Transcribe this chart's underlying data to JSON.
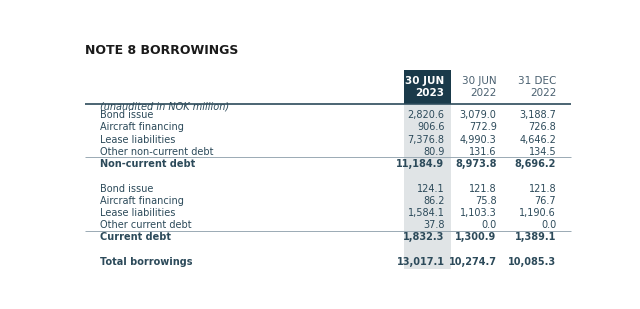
{
  "title": "NOTE 8 BORROWINGS",
  "subtitle": "(unaudited in NOK million)",
  "col_headers": [
    "30 JUN\n2023",
    "30 JUN\n2022",
    "31 DEC\n2022"
  ],
  "col_header_color": [
    "#ffffff",
    "#4a6070",
    "#4a6070"
  ],
  "rows": [
    {
      "label": "Bond issue",
      "vals": [
        "2,820.6",
        "3,079.0",
        "3,188.7"
      ],
      "bold": false,
      "separator_above": false
    },
    {
      "label": "Aircraft financing",
      "vals": [
        "906.6",
        "772.9",
        "726.8"
      ],
      "bold": false,
      "separator_above": false
    },
    {
      "label": "Lease liabilities",
      "vals": [
        "7,376.8",
        "4,990.3",
        "4,646.2"
      ],
      "bold": false,
      "separator_above": false
    },
    {
      "label": "Other non-current debt",
      "vals": [
        "80.9",
        "131.6",
        "134.5"
      ],
      "bold": false,
      "separator_above": false
    },
    {
      "label": "Non-current debt",
      "vals": [
        "11,184.9",
        "8,973.8",
        "8,696.2"
      ],
      "bold": true,
      "separator_above": true
    },
    {
      "label": "",
      "vals": [
        "",
        "",
        ""
      ],
      "bold": false,
      "separator_above": false
    },
    {
      "label": "Bond issue",
      "vals": [
        "124.1",
        "121.8",
        "121.8"
      ],
      "bold": false,
      "separator_above": false
    },
    {
      "label": "Aircraft financing",
      "vals": [
        "86.2",
        "75.8",
        "76.7"
      ],
      "bold": false,
      "separator_above": false
    },
    {
      "label": "Lease liabilities",
      "vals": [
        "1,584.1",
        "1,103.3",
        "1,190.6"
      ],
      "bold": false,
      "separator_above": false
    },
    {
      "label": "Other current debt",
      "vals": [
        "37.8",
        "0.0",
        "0.0"
      ],
      "bold": false,
      "separator_above": false
    },
    {
      "label": "Current debt",
      "vals": [
        "1,832.3",
        "1,300.9",
        "1,389.1"
      ],
      "bold": true,
      "separator_above": true
    },
    {
      "label": "",
      "vals": [
        "",
        "",
        ""
      ],
      "bold": false,
      "separator_above": false
    },
    {
      "label": "Total borrowings",
      "vals": [
        "13,017.1",
        "10,274.7",
        "10,085.3"
      ],
      "bold": true,
      "separator_above": false
    }
  ],
  "background_color": "#ffffff",
  "dark_header_bg": "#1a3a4a",
  "shade_color": "#e0e4e6",
  "text_color": "#2c4a5a",
  "header_line_color": "#2c4a5a",
  "separator_color": "#9aaab4"
}
